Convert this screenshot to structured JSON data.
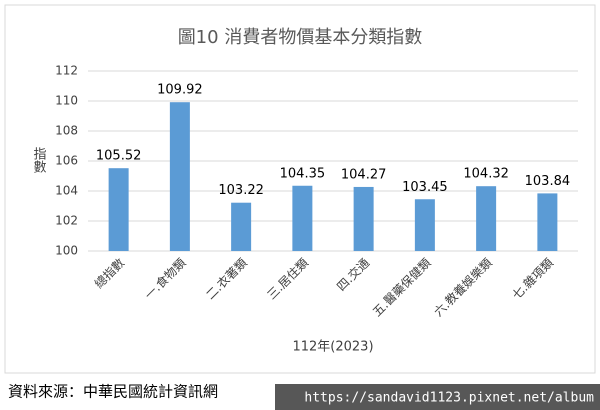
{
  "chart_data": {
    "type": "bar",
    "title": "圖10  消費者物價基本分類指數",
    "y_label": "指數",
    "x_label": "112年(2023)",
    "categories": [
      "總指數",
      "一.食物類",
      "二.衣著類",
      "三.居住類",
      "四.交通",
      "五.醫藥保健類",
      "六.教養娛樂類",
      "七.雜項類"
    ],
    "values": [
      105.52,
      109.92,
      103.22,
      104.35,
      104.27,
      103.45,
      104.32,
      103.84
    ],
    "color": "#5b9bd5",
    "ylim": [
      100,
      112
    ],
    "yticks": [
      100,
      102,
      104,
      106,
      108,
      110,
      112
    ],
    "grid": true,
    "source": "資料來源：中華民國統計資訊網"
  },
  "watermark": "https://sandavid1123.pixnet.net/album"
}
